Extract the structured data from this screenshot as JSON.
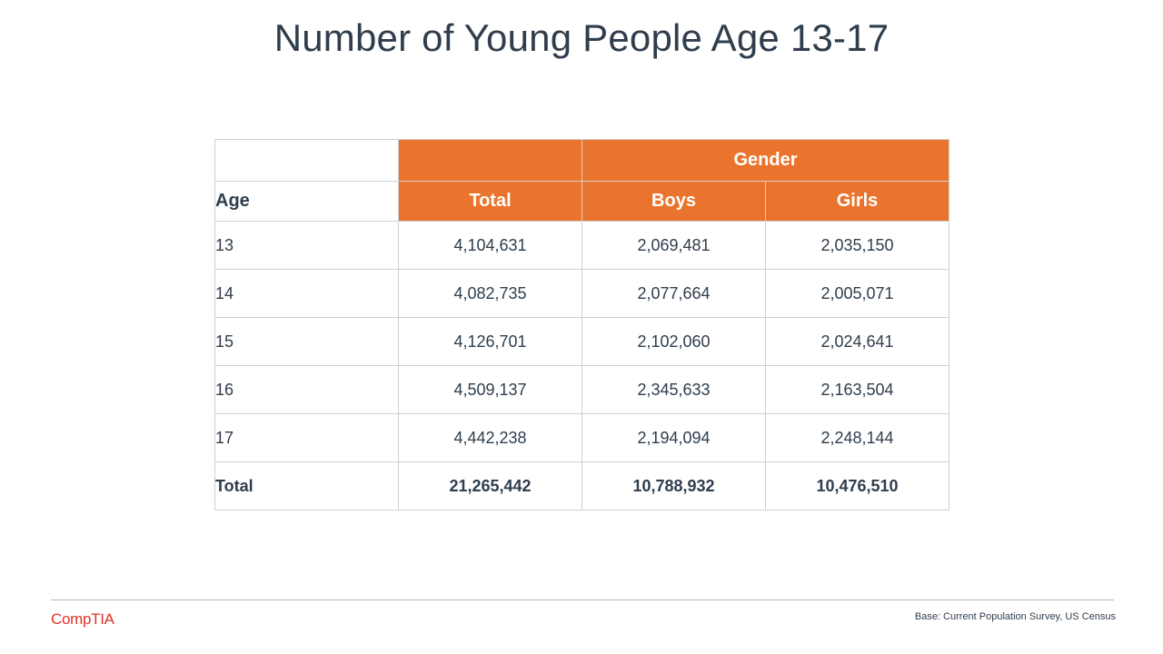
{
  "title": "Number of Young People Age 13-17",
  "table": {
    "group_header": "Gender",
    "row_header": "Age",
    "columns": [
      "Total",
      "Boys",
      "Girls"
    ],
    "rows": [
      {
        "age": "13",
        "total": "4,104,631",
        "boys": "2,069,481",
        "girls": "2,035,150"
      },
      {
        "age": "14",
        "total": "4,082,735",
        "boys": "2,077,664",
        "girls": "2,005,071"
      },
      {
        "age": "15",
        "total": "4,126,701",
        "boys": "2,102,060",
        "girls": "2,024,641"
      },
      {
        "age": "16",
        "total": "4,509,137",
        "boys": "2,345,633",
        "girls": "2,163,504"
      },
      {
        "age": "17",
        "total": "4,442,238",
        "boys": "2,194,094",
        "girls": "2,248,144"
      }
    ],
    "total_row": {
      "label": "Total",
      "total": "21,265,442",
      "boys": "10,788,932",
      "girls": "10,476,510"
    }
  },
  "footer": {
    "logo": "CompTIA",
    "source": "Base: Current Population Survey, US Census"
  },
  "colors": {
    "header_accent": "#ea742d",
    "logo": "#e0322b",
    "text": "#2f3d4c"
  }
}
